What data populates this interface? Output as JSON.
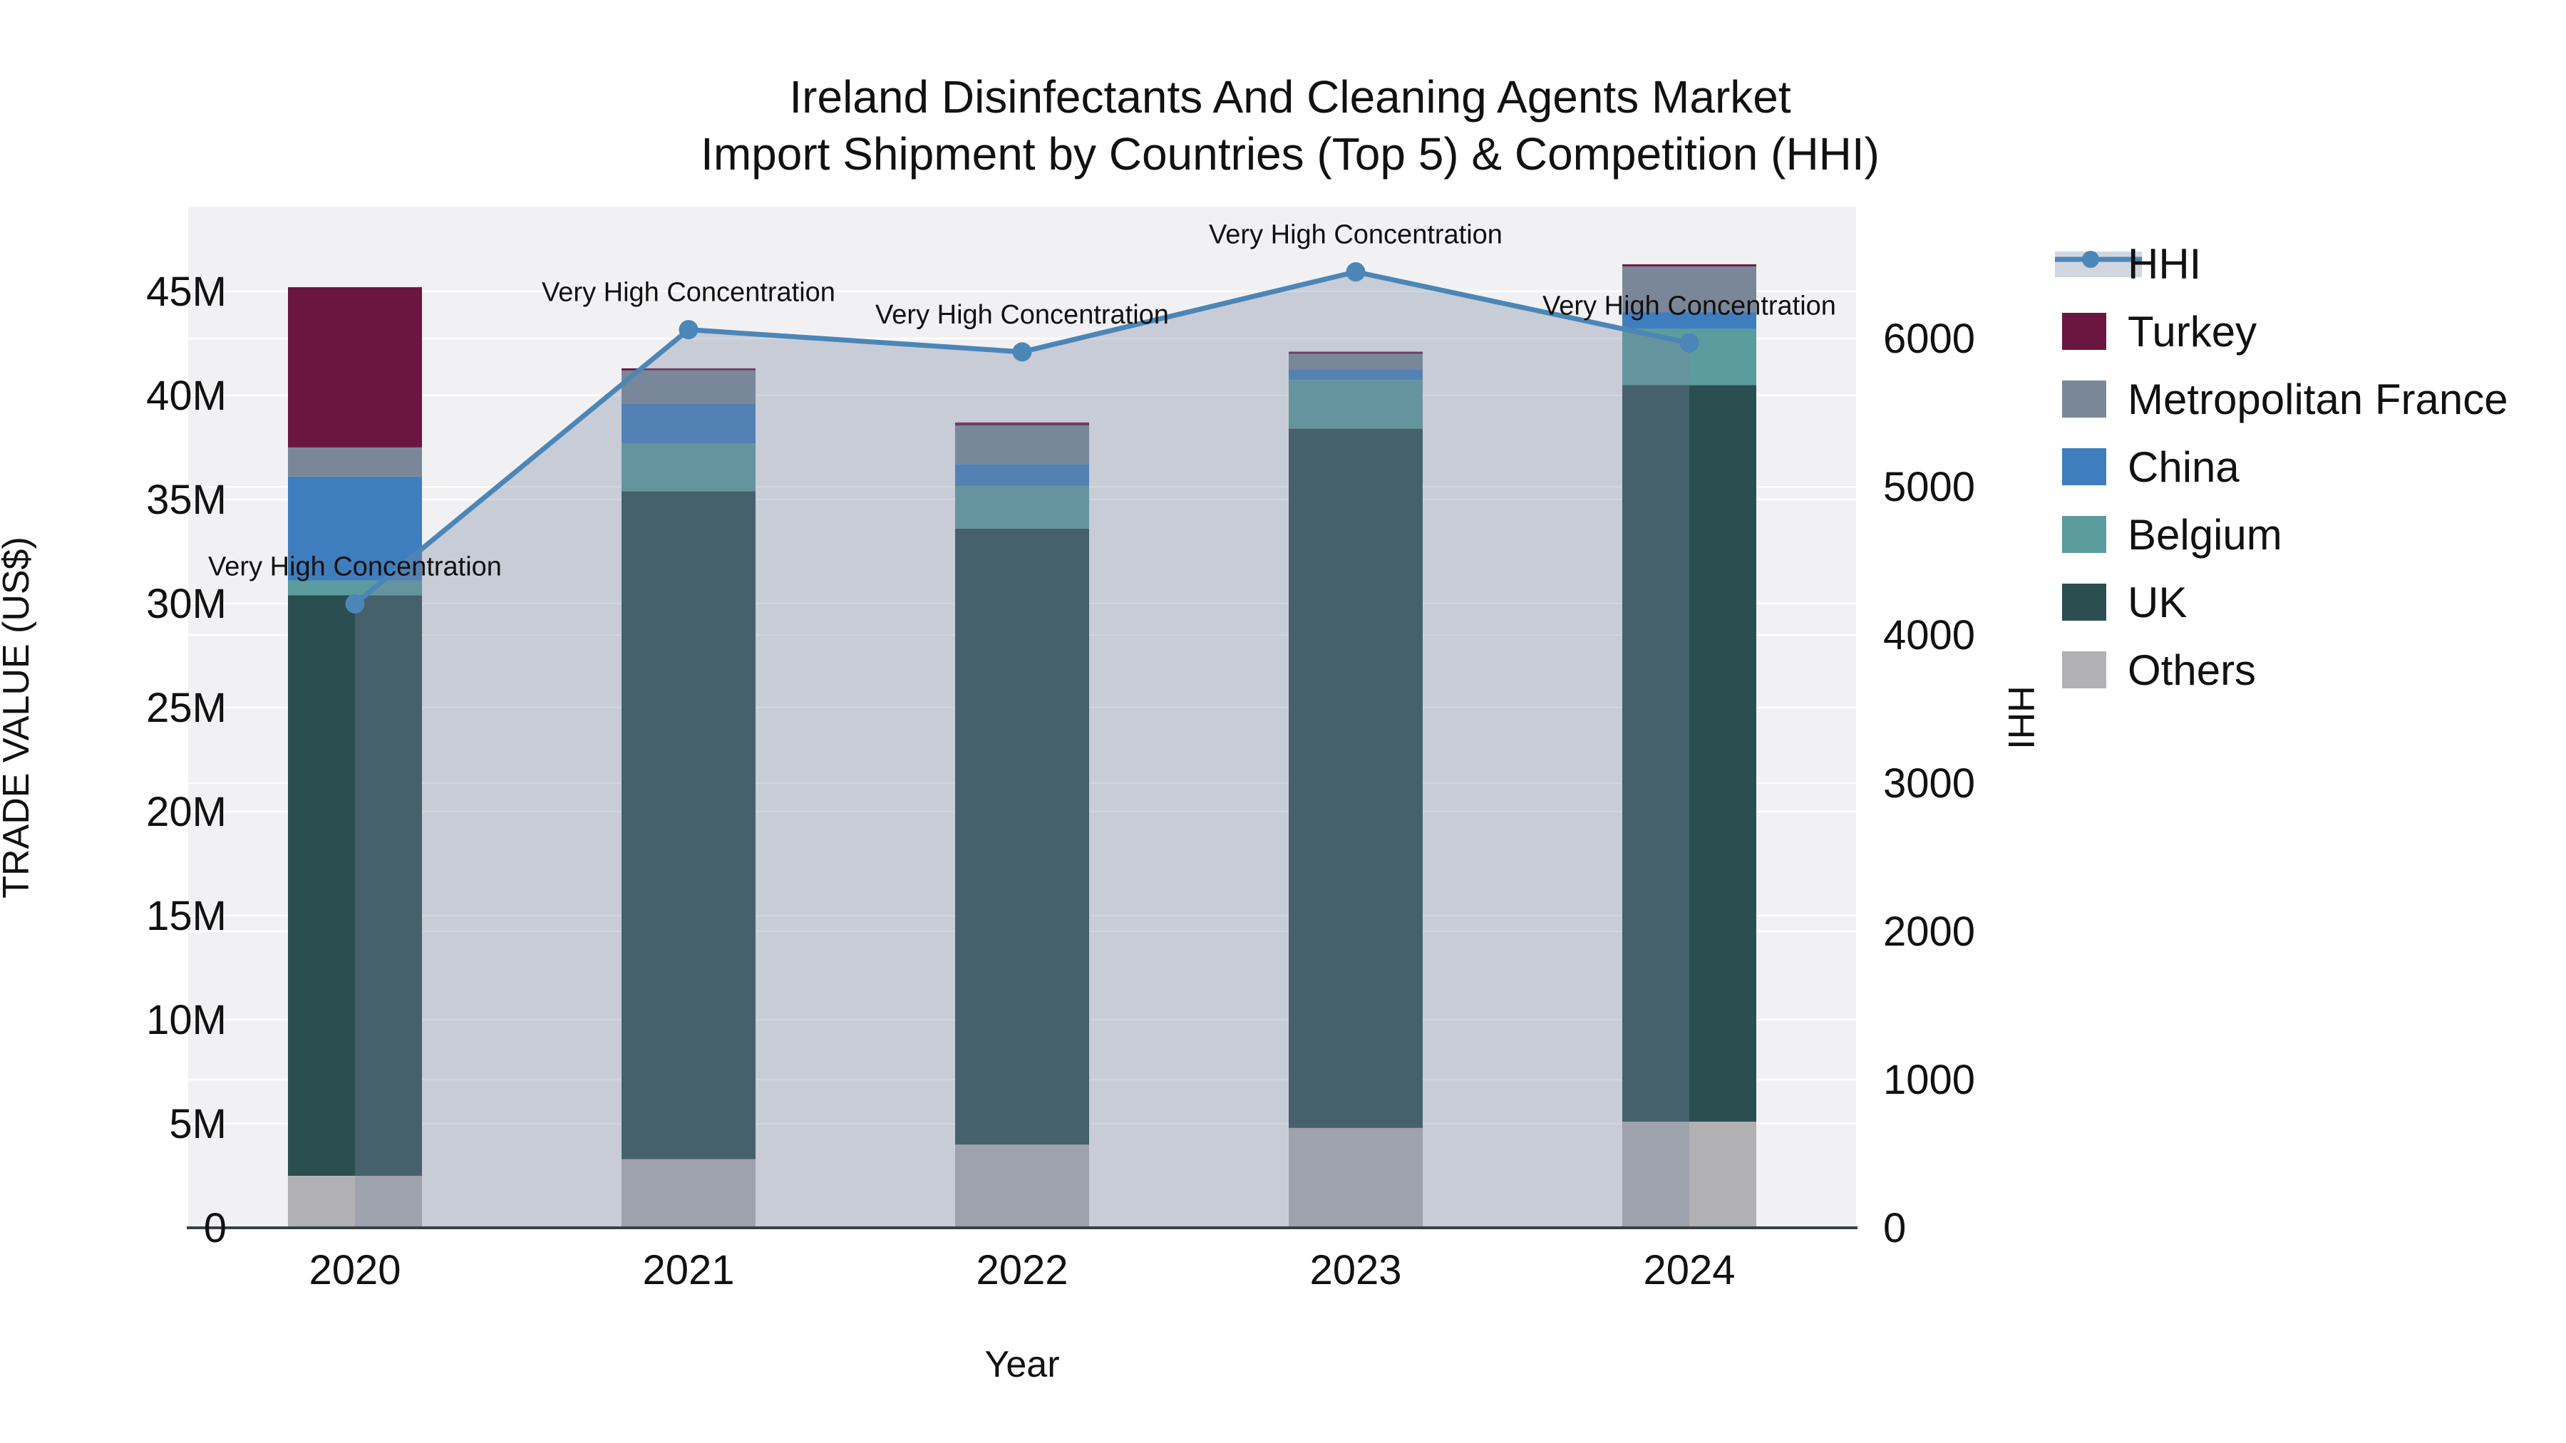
{
  "title": {
    "line1": "Ireland Disinfectants And Cleaning Agents Market",
    "line2": "Import Shipment by Countries (Top 5) & Competition (HHI)"
  },
  "chart_data": {
    "type": "bar",
    "subtype": "stacked-bars-with-line",
    "x": [
      "2020",
      "2021",
      "2022",
      "2023",
      "2024"
    ],
    "xlabel": "Year",
    "left_axis": {
      "title": "TRADE VALUE (US$)",
      "tick_labels": [
        "0",
        "5M",
        "10M",
        "15M",
        "20M",
        "25M",
        "30M",
        "35M",
        "40M",
        "45M"
      ],
      "tick_values_musd": [
        0,
        5,
        10,
        15,
        20,
        25,
        30,
        35,
        40,
        45
      ],
      "ylim_musd": [
        0,
        49.07
      ],
      "grid": true
    },
    "right_axis": {
      "title": "HHI",
      "tick_labels": [
        "0",
        "1000",
        "2000",
        "3000",
        "4000",
        "5000",
        "6000"
      ],
      "tick_values": [
        0,
        1000,
        2000,
        3000,
        4000,
        5000,
        6000
      ],
      "ylim": [
        0,
        6890
      ],
      "grid": true
    },
    "bar_series_bottom_to_top": [
      {
        "name": "Others",
        "color": "#b1b1b3",
        "values_musd": [
          2.5,
          3.3,
          4.0,
          4.8,
          5.1
        ]
      },
      {
        "name": "UK",
        "color": "#2b4e50",
        "values_musd": [
          27.9,
          32.1,
          29.6,
          33.6,
          35.4
        ]
      },
      {
        "name": "Belgium",
        "color": "#5b9c9e",
        "values_musd": [
          0.7,
          2.3,
          2.05,
          2.35,
          2.7
        ]
      },
      {
        "name": "China",
        "color": "#3f7ebe",
        "values_musd": [
          5.0,
          1.9,
          1.05,
          0.5,
          0.8
        ]
      },
      {
        "name": "Metropolitan France",
        "color": "#7a8799",
        "values_musd": [
          1.4,
          1.6,
          1.85,
          0.75,
          2.2
        ]
      },
      {
        "name": "Turkey",
        "color": "#6b1641",
        "values_musd": [
          7.7,
          0.1,
          0.15,
          0.1,
          0.1
        ]
      }
    ],
    "bar_totals_musd": [
      45.2,
      41.3,
      38.7,
      42.1,
      46.3
    ],
    "line_series": {
      "name": "HHI",
      "color": "#4b86b7",
      "area_fill": "rgba(120,135,160,0.35)",
      "values": [
        4210,
        6060,
        5910,
        6450,
        5970
      ]
    },
    "annotation_label": "Very High Concentration",
    "legend": {
      "position": "right",
      "entries": [
        "HHI",
        "Turkey",
        "Metropolitan France",
        "China",
        "Belgium",
        "UK",
        "Others"
      ]
    },
    "colors": {
      "plot_background": "#f1f1f3",
      "gridline": "#ffffff",
      "axis_line": "#3b4045",
      "text": "#111111"
    }
  }
}
